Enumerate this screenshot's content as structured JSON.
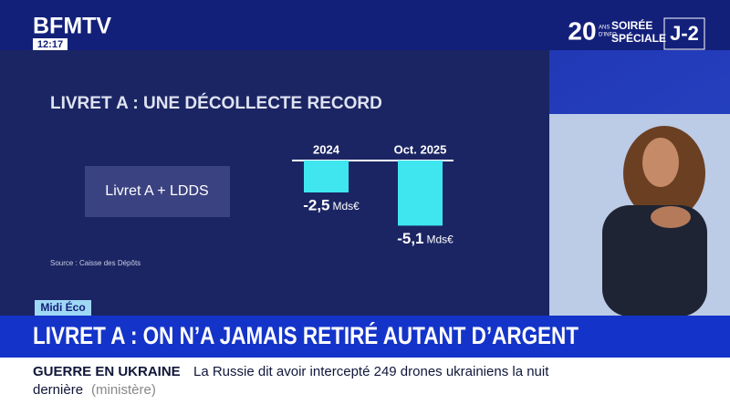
{
  "header": {
    "channel": "BFMTV",
    "time": "12:17",
    "anniversary": "20",
    "anniversary_text": [
      "ANS",
      "D'INFO"
    ],
    "event": [
      "SOIRÉE",
      "SPÉCIALE"
    ],
    "countdown": "J-2"
  },
  "chart_data": {
    "type": "bar",
    "title": "LIVRET A : UNE DÉCOLLECTE RECORD",
    "annotation": "Livret A + LDDS",
    "source": "Source : Caisse des Dépôts",
    "categories": [
      "2024",
      "Oct. 2025"
    ],
    "values": [
      -2.5,
      -5.1
    ],
    "value_labels": [
      "-2,5",
      "-5,1"
    ],
    "unit": "Mds€",
    "color": "#3fe6ef"
  },
  "banner": {
    "tag": "Midi Éco",
    "headline": "LIVRET A : ON N’A JAMAIS RETIRÉ AUTANT D’ARGENT"
  },
  "ticker": {
    "topic": "GUERRE EN UKRAINE",
    "line1": "La Russie dit avoir intercepté 249 drones ukrainiens la nuit",
    "line2": "dernière",
    "note": "(ministère)"
  }
}
